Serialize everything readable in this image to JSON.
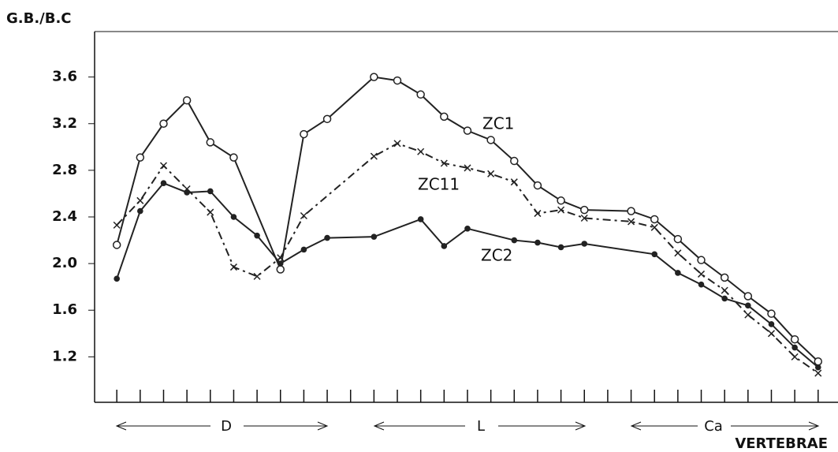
{
  "chart_data": {
    "type": "line",
    "y_label": "G.B./B.C",
    "x_label": "VERTEBRAE",
    "groups": [
      "D",
      "L",
      "Ca"
    ],
    "xlim": [
      0.05,
      31.85
    ],
    "xticks": [
      1,
      2,
      3,
      4,
      5,
      6,
      7,
      8,
      9,
      10,
      11,
      12,
      13,
      14,
      15,
      16,
      17,
      18,
      19,
      20,
      21,
      22,
      23,
      24,
      25,
      26,
      27,
      28,
      29,
      30,
      31
    ],
    "ylim": [
      0.81,
      3.99
    ],
    "yticks": [
      {
        "value": 1.2,
        "label": "1.2"
      },
      {
        "value": 1.6,
        "label": "1.6"
      },
      {
        "value": 2.0,
        "label": "2.0"
      },
      {
        "value": 2.4,
        "label": "2.4"
      },
      {
        "value": 2.8,
        "label": "2.8"
      },
      {
        "value": 3.2,
        "label": "3.2"
      },
      {
        "value": 3.6,
        "label": "3.6"
      }
    ],
    "series": [
      {
        "name": "ZC1",
        "color": "#222222",
        "marker": "open-circle",
        "x": [
          1,
          2,
          3,
          4,
          5,
          6,
          8,
          9,
          10,
          12,
          13,
          14,
          15,
          16,
          17,
          18,
          19,
          20,
          21,
          23,
          24,
          25,
          26,
          27,
          28,
          29,
          30,
          31
        ],
        "values": [
          2.16,
          2.91,
          3.2,
          3.4,
          3.04,
          2.91,
          1.95,
          3.11,
          3.24,
          3.6,
          3.57,
          3.45,
          3.26,
          3.14,
          3.06,
          2.88,
          2.67,
          2.54,
          2.46,
          2.45,
          2.38,
          2.21,
          2.03,
          1.88,
          1.72,
          1.57,
          1.35,
          1.16
        ]
      },
      {
        "name": "ZC11",
        "color": "#222222",
        "marker": "cross",
        "x": [
          1,
          2,
          3,
          4,
          5,
          6,
          7,
          8,
          9,
          12,
          13,
          14,
          15,
          16,
          17,
          18,
          19,
          20,
          21,
          23,
          24,
          25,
          26,
          27,
          28,
          29,
          30,
          31
        ],
        "values": [
          2.33,
          2.54,
          2.84,
          2.64,
          2.44,
          1.97,
          1.89,
          2.05,
          2.41,
          2.92,
          3.03,
          2.96,
          2.86,
          2.82,
          2.77,
          2.7,
          2.43,
          2.46,
          2.39,
          2.36,
          2.31,
          2.09,
          1.91,
          1.77,
          1.56,
          1.4,
          1.2,
          1.06
        ]
      },
      {
        "name": "ZC2",
        "color": "#222222",
        "marker": "dot",
        "x": [
          1,
          2,
          3,
          4,
          5,
          6,
          7,
          8,
          9,
          10,
          12,
          14,
          15,
          16,
          18,
          19,
          20,
          21,
          24,
          25,
          26,
          27,
          28,
          29,
          30,
          31
        ],
        "values": [
          1.87,
          2.45,
          2.69,
          2.61,
          2.62,
          2.4,
          2.24,
          2.0,
          2.12,
          2.22,
          2.23,
          2.38,
          2.15,
          2.3,
          2.2,
          2.18,
          2.14,
          2.17,
          2.08,
          1.92,
          1.82,
          1.7,
          1.64,
          1.48,
          1.28,
          1.11
        ]
      }
    ]
  }
}
